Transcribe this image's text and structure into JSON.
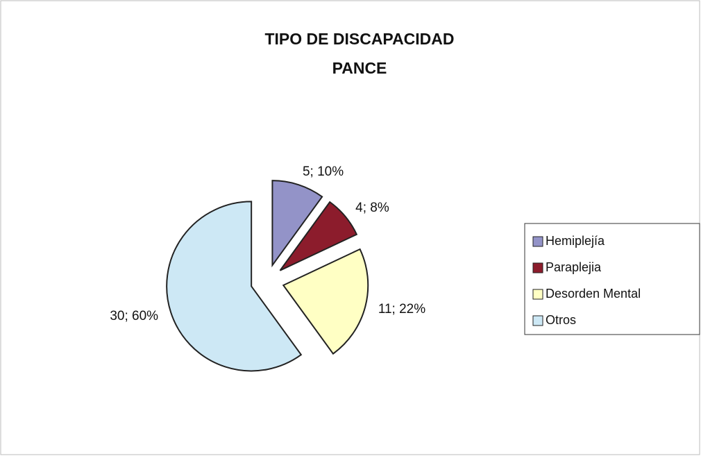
{
  "chart_data": {
    "type": "pie",
    "title": [
      "TIPO DE DISCAPACIDAD",
      "PANCE"
    ],
    "categories": [
      "Hemiplejía",
      "Paraplejia",
      "Desorden Mental",
      "Otros"
    ],
    "values": [
      5,
      4,
      11,
      30
    ],
    "value_labels": [
      "5; 10%",
      "4; 8%",
      "11; 22%",
      "30; 60%"
    ],
    "colors": [
      "#9393c8",
      "#8c1c2c",
      "#ffffc4",
      "#cde8f5"
    ],
    "legend": "right"
  }
}
